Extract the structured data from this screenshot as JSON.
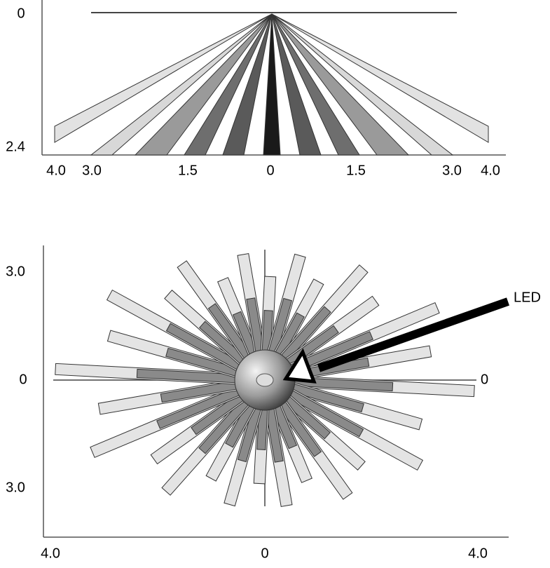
{
  "side_view": {
    "y_labels": [
      "0",
      "2.4"
    ],
    "x_labels": [
      "4.0",
      "3.0",
      "1.5",
      "0",
      "1.5",
      "3.0",
      "4.0"
    ]
  },
  "top_view": {
    "y_labels": [
      "3.0",
      "0",
      "3.0"
    ],
    "x_labels": [
      "4.0",
      "0",
      "4.0"
    ],
    "right_label": "0",
    "annotation": "LED"
  }
}
